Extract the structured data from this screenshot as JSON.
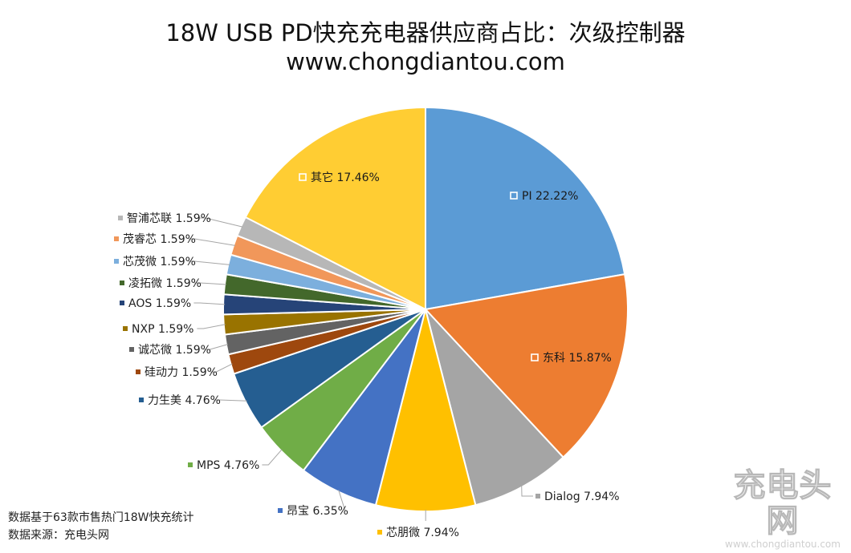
{
  "chart_data": {
    "type": "pie",
    "title": "18W USB PD快充充电器供应商占比：次级控制器",
    "subtitle": "www.chongdiantou.com",
    "slices": [
      {
        "name": "PI",
        "value": 22.22,
        "label": "PI 22.22%",
        "color": "#5B9BD5"
      },
      {
        "name": "东科",
        "value": 15.87,
        "label": "东科 15.87%",
        "color": "#ED7D31"
      },
      {
        "name": "Dialog",
        "value": 7.94,
        "label": "Dialog 7.94%",
        "color": "#A5A5A5"
      },
      {
        "name": "芯朋微",
        "value": 7.94,
        "label": "芯朋微 7.94%",
        "color": "#FFC000"
      },
      {
        "name": "昂宝",
        "value": 6.35,
        "label": "昂宝 6.35%",
        "color": "#4472C4"
      },
      {
        "name": "MPS",
        "value": 4.76,
        "label": "MPS 4.76%",
        "color": "#70AD47"
      },
      {
        "name": "力生美",
        "value": 4.76,
        "label": "力生美 4.76%",
        "color": "#255E91"
      },
      {
        "name": "硅动力",
        "value": 1.59,
        "label": "硅动力 1.59%",
        "color": "#9E480E"
      },
      {
        "name": "诚芯微",
        "value": 1.59,
        "label": "诚芯微 1.59%",
        "color": "#636363"
      },
      {
        "name": "NXP",
        "value": 1.59,
        "label": "NXP 1.59%",
        "color": "#997300"
      },
      {
        "name": "AOS",
        "value": 1.59,
        "label": "AOS 1.59%",
        "color": "#264478"
      },
      {
        "name": "凌拓微",
        "value": 1.59,
        "label": "凌拓微 1.59%",
        "color": "#43682B"
      },
      {
        "name": "芯茂微",
        "value": 1.59,
        "label": "芯茂微 1.59%",
        "color": "#7CAFDD"
      },
      {
        "name": "茂睿芯",
        "value": 1.59,
        "label": "茂睿芯 1.59%",
        "color": "#F1975A"
      },
      {
        "name": "智浦芯联",
        "value": 1.59,
        "label": "智浦芯联 1.59%",
        "color": "#B7B7B7"
      },
      {
        "name": "其它",
        "value": 17.46,
        "label": "其它 17.46%",
        "color": "#FFCD33"
      }
    ],
    "start_angle_deg": 0,
    "direction": "clockwise",
    "legend": "none",
    "data_labels": "category-and-percent"
  },
  "footnotes": {
    "basis": "数据基于63款市售热门18W快充统计",
    "source": "数据来源：充电头网"
  },
  "logo": {
    "mark": "充电头网",
    "url": "www.chongdiantou.com"
  }
}
